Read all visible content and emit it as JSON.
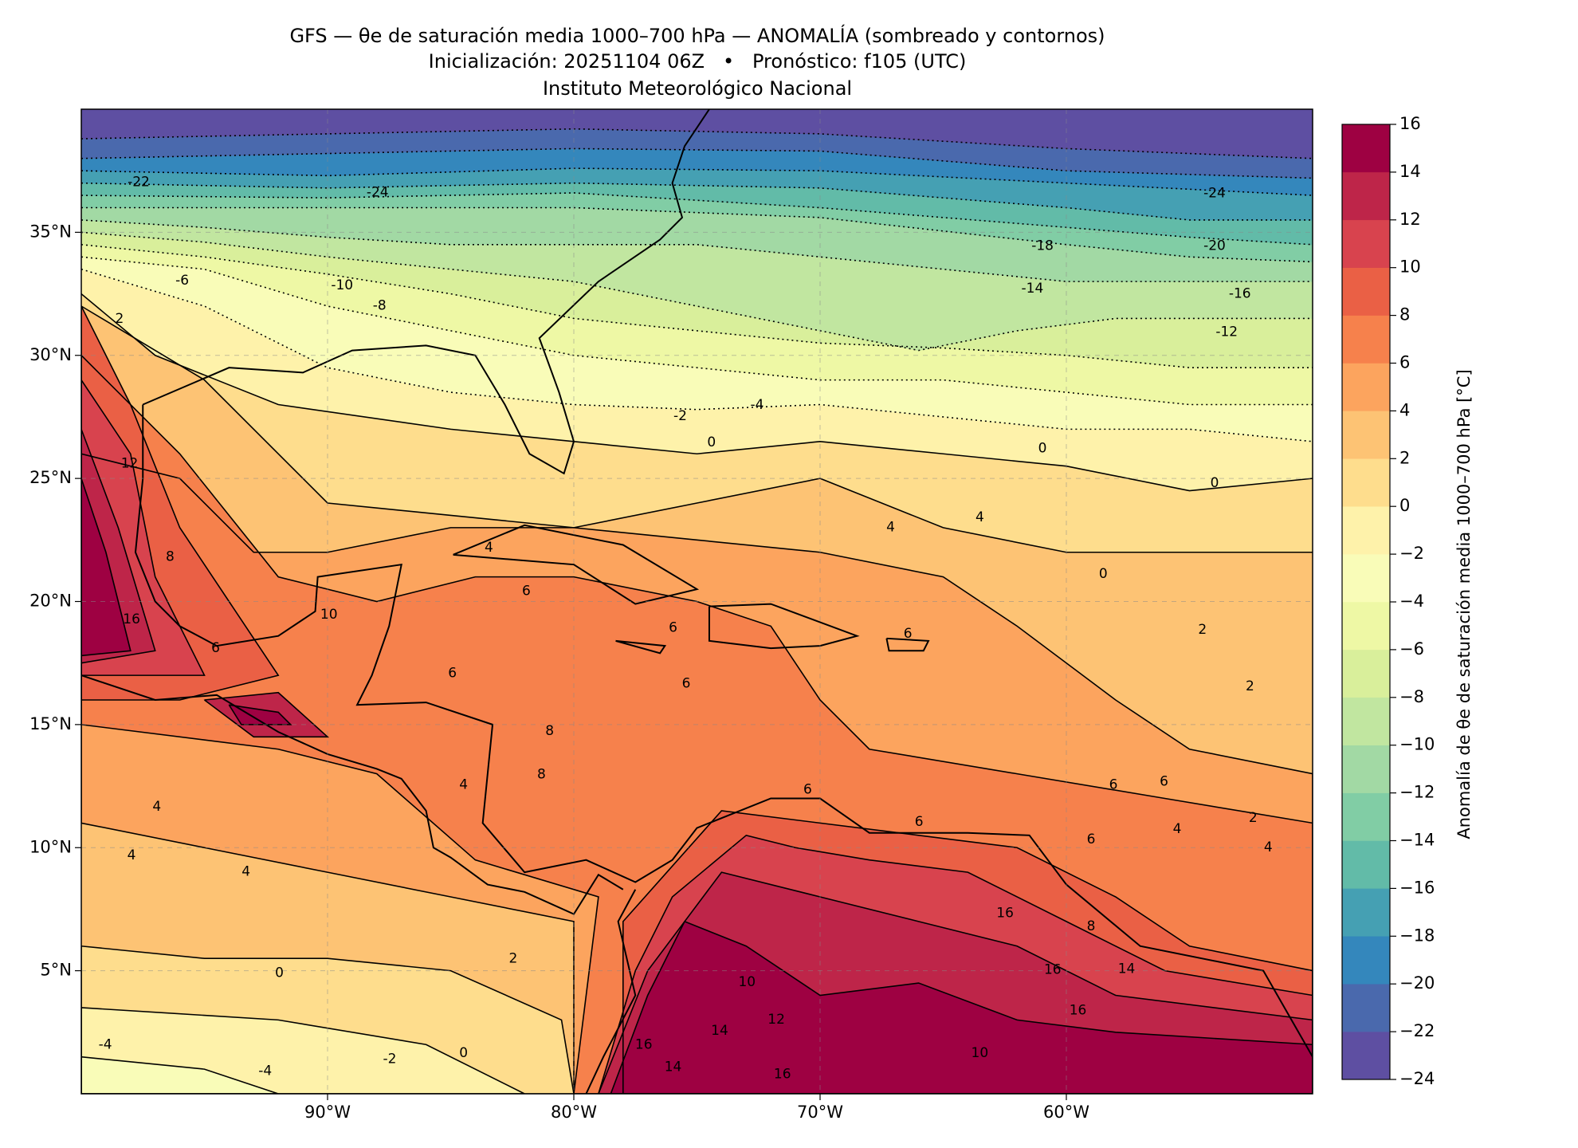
{
  "chart_data": {
    "type": "map",
    "title": "GFS — θe de saturación media 1000–700 hPa — ANOMALÍA (sombreado y contornos)",
    "subtitle": "Inicialización: 20251104 06Z   •   Pronóstico: f105 (UTC)",
    "source": "Instituto Meteorológico Nacional",
    "xlim": [
      -100,
      -50
    ],
    "ylim": [
      0,
      40
    ],
    "xticks": [
      {
        "value": -90,
        "label": "90°W"
      },
      {
        "value": -80,
        "label": "80°W"
      },
      {
        "value": -70,
        "label": "70°W"
      },
      {
        "value": -60,
        "label": "60°W"
      }
    ],
    "yticks": [
      {
        "value": 5,
        "label": "5°N"
      },
      {
        "value": 10,
        "label": "10°N"
      },
      {
        "value": 15,
        "label": "15°N"
      },
      {
        "value": 20,
        "label": "20°N"
      },
      {
        "value": 25,
        "label": "25°N"
      },
      {
        "value": 30,
        "label": "30°N"
      },
      {
        "value": 35,
        "label": "35°N"
      }
    ],
    "grid": true,
    "colorbar": {
      "label": "Anomalía de θe de saturación media 1000–700 hPa [°C]",
      "ticks": [
        {
          "value": -24,
          "label": "−24"
        },
        {
          "value": -22,
          "label": "−22"
        },
        {
          "value": -20,
          "label": "−20"
        },
        {
          "value": -18,
          "label": "−18"
        },
        {
          "value": -16,
          "label": "−16"
        },
        {
          "value": -14,
          "label": "−14"
        },
        {
          "value": -12,
          "label": "−12"
        },
        {
          "value": -10,
          "label": "−10"
        },
        {
          "value": -8,
          "label": "−8"
        },
        {
          "value": -6,
          "label": "−6"
        },
        {
          "value": -4,
          "label": "−4"
        },
        {
          "value": -2,
          "label": "−2"
        },
        0,
        2,
        4,
        6,
        8,
        10,
        12,
        14,
        16
      ],
      "colors": [
        "#5e4fa2",
        "#4a69ad",
        "#3487bc",
        "#45a0b3",
        "#62bba8",
        "#81cda5",
        "#a2d9a4",
        "#c1e6a0",
        "#d9ef9b",
        "#eef8a5",
        "#f9fcb8",
        "#fef2aa",
        "#fedd8d",
        "#fdc374",
        "#fca45e",
        "#f6814c",
        "#ea6045",
        "#d8434e",
        "#be2549",
        "#9e0142"
      ]
    },
    "contour_labels": [
      "-22",
      "-24",
      "-24",
      "-6",
      "-10",
      "-8",
      "2",
      "-18",
      "-20",
      "-14",
      "-16",
      "-12",
      "-2",
      "-4",
      "0",
      "0",
      "0",
      "12",
      "8",
      "16",
      "10",
      "6",
      "4",
      "6",
      "6",
      "6",
      "6",
      "6",
      "8",
      "8",
      "4",
      "4",
      "4",
      "4",
      "6",
      "6",
      "6",
      "6",
      "6",
      "4",
      "2",
      "4",
      "2",
      "2",
      "4",
      "4",
      "0",
      "2",
      "0",
      "-2",
      "0",
      "-4",
      "-4",
      "16",
      "14",
      "16",
      "10",
      "12",
      "14",
      "16",
      "14",
      "16",
      "10",
      "16",
      "8"
    ]
  }
}
